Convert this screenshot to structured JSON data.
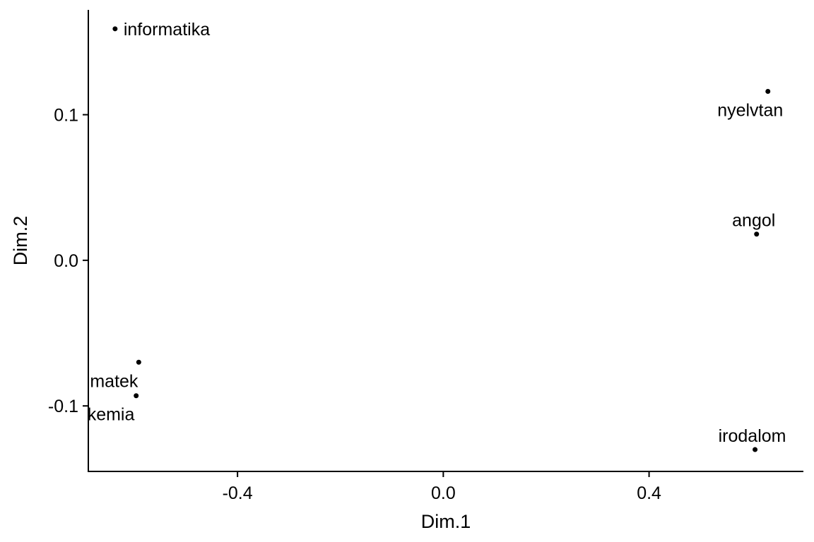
{
  "chart_data": {
    "type": "scatter",
    "title": "",
    "xlabel": "Dim.1",
    "ylabel": "Dim.2",
    "xlim": [
      -0.69,
      0.7
    ],
    "ylim": [
      -0.145,
      0.172
    ],
    "xticks": [
      {
        "value": -0.4,
        "label": "-0.4"
      },
      {
        "value": 0.0,
        "label": "0.0"
      },
      {
        "value": 0.4,
        "label": "0.4"
      }
    ],
    "yticks": [
      {
        "value": -0.1,
        "label": "-0.1"
      },
      {
        "value": 0.0,
        "label": "0.0"
      },
      {
        "value": 0.1,
        "label": "0.1"
      }
    ],
    "grid": false,
    "legend": "none",
    "point_color": "#000000",
    "points": [
      {
        "label": "informatika",
        "x": -0.638,
        "y": 0.159,
        "label_anchor": "right"
      },
      {
        "label": "nyelvtan",
        "x": 0.631,
        "y": 0.116,
        "label_anchor": "below"
      },
      {
        "label": "angol",
        "x": 0.609,
        "y": 0.018,
        "label_anchor": "above"
      },
      {
        "label": "matek",
        "x": -0.592,
        "y": -0.07,
        "label_anchor": "below-left"
      },
      {
        "label": "kemia",
        "x": -0.597,
        "y": -0.093,
        "label_anchor": "below-left"
      },
      {
        "label": "irodalom",
        "x": 0.606,
        "y": -0.13,
        "label_anchor": "above"
      }
    ]
  }
}
